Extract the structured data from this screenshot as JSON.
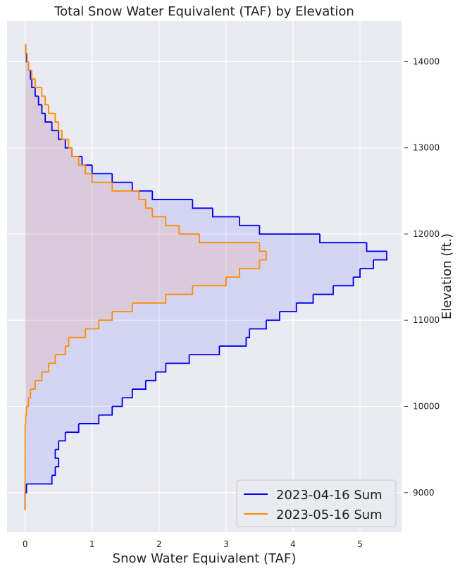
{
  "chart_data": {
    "type": "step",
    "title": "Total Snow Water Equivalent (TAF) by Elevation",
    "x_label": "Snow Water Equivalent (TAF)",
    "y_label": "Elevation (ft.)",
    "y": [
      8800,
      8900,
      9000,
      9100,
      9200,
      9300,
      9400,
      9500,
      9600,
      9700,
      9800,
      9900,
      10000,
      10100,
      10200,
      10300,
      10400,
      10500,
      10600,
      10700,
      10800,
      10900,
      11000,
      11100,
      11200,
      11300,
      11400,
      11500,
      11600,
      11700,
      11800,
      11900,
      12000,
      12100,
      12200,
      12300,
      12400,
      12500,
      12600,
      12700,
      12800,
      12900,
      13000,
      13100,
      13200,
      13300,
      13400,
      13500,
      13600,
      13700,
      13800,
      13900,
      14000,
      14100,
      14200
    ],
    "series": [
      {
        "name": "2023-04-16 Sum",
        "color": "#0000ee",
        "fill": "rgba(70,70,255,0.13)",
        "values": [
          0,
          0,
          0.02,
          0.4,
          0.45,
          0.5,
          0.45,
          0.5,
          0.6,
          0.8,
          1.1,
          1.3,
          1.45,
          1.6,
          1.8,
          1.95,
          2.1,
          2.45,
          2.9,
          3.3,
          3.35,
          3.6,
          3.8,
          4.05,
          4.3,
          4.6,
          4.9,
          5.0,
          5.2,
          5.4,
          5.1,
          4.4,
          3.5,
          3.2,
          2.8,
          2.5,
          1.9,
          1.6,
          1.3,
          1.0,
          0.85,
          0.7,
          0.6,
          0.5,
          0.4,
          0.3,
          0.25,
          0.2,
          0.15,
          0.1,
          0.08,
          0.05,
          0.02,
          0.01,
          0
        ]
      },
      {
        "name": "2023-05-16 Sum",
        "color": "#ff8c00",
        "fill": "rgba(255,150,60,0.13)",
        "values": [
          0,
          0,
          0,
          0,
          0,
          0,
          0,
          0,
          0,
          0,
          0.01,
          0.02,
          0.05,
          0.08,
          0.15,
          0.25,
          0.35,
          0.45,
          0.6,
          0.65,
          0.9,
          1.1,
          1.3,
          1.6,
          2.1,
          2.5,
          3.0,
          3.2,
          3.5,
          3.6,
          3.5,
          2.6,
          2.3,
          2.1,
          1.9,
          1.8,
          1.7,
          1.3,
          1.0,
          0.9,
          0.8,
          0.7,
          0.65,
          0.55,
          0.5,
          0.45,
          0.35,
          0.3,
          0.25,
          0.15,
          0.1,
          0.05,
          0.03,
          0.01,
          0
        ]
      }
    ],
    "xlim": [
      -0.27,
      5.62
    ],
    "xticks": [
      0,
      1,
      2,
      3,
      4,
      5
    ],
    "ylim": [
      8540,
      14470
    ],
    "yticks": [
      9000,
      10000,
      11000,
      12000,
      13000,
      14000
    ],
    "grid": true,
    "legend": "lower right"
  }
}
